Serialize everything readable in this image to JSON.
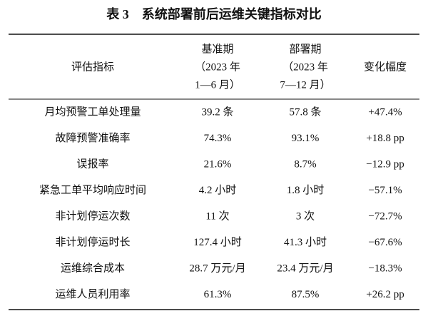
{
  "table": {
    "title": "表 3　系统部署前后运维关键指标对比",
    "header": [
      [
        "评估指标"
      ],
      [
        "基准期",
        "（2023 年",
        "1—6 月）"
      ],
      [
        "部署期",
        "（2023 年",
        "7—12 月）"
      ],
      [
        "变化幅度"
      ]
    ],
    "rows": [
      [
        "月均预警工单处理量",
        "39.2 条",
        "57.8 条",
        "+47.4%"
      ],
      [
        "故障预警准确率",
        "74.3%",
        "93.1%",
        "+18.8 pp"
      ],
      [
        "误报率",
        "21.6%",
        "8.7%",
        "−12.9 pp"
      ],
      [
        "紧急工单平均响应时间",
        "4.2 小时",
        "1.8 小时",
        "−57.1%"
      ],
      [
        "非计划停运次数",
        "11 次",
        "3 次",
        "−72.7%"
      ],
      [
        "非计划停运时长",
        "127.4 小时",
        "41.3 小时",
        "−67.6%"
      ],
      [
        "运维综合成本",
        "28.7 万元/月",
        "23.4 万元/月",
        "−18.3%"
      ],
      [
        "运维人员利用率",
        "61.3%",
        "87.5%",
        "+26.2 pp"
      ]
    ]
  }
}
